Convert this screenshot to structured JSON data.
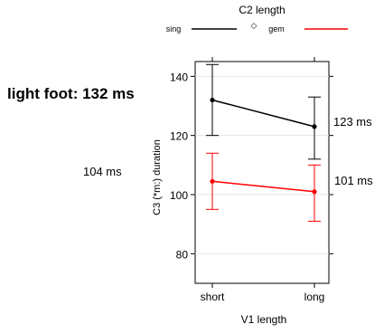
{
  "chart_data": {
    "type": "line",
    "legend": {
      "title": "C2 length",
      "placement": "top",
      "entries": [
        {
          "name": "sing",
          "color": "#000000",
          "marker": "line"
        },
        {
          "name": "gem",
          "color": "#ff0000",
          "marker": "line"
        }
      ],
      "extra_marker": "◇"
    },
    "categories": [
      "short",
      "long"
    ],
    "xlabel": "V1 length",
    "ylabel": "C3 (*m:) duration",
    "ylim": [
      70,
      145
    ],
    "yticks": [
      80,
      100,
      120,
      140
    ],
    "series": [
      {
        "name": "sing",
        "color": "#000000",
        "values": [
          132,
          123
        ],
        "error_low": [
          120,
          112
        ],
        "error_high": [
          144,
          133
        ]
      },
      {
        "name": "gem",
        "color": "#ff0000",
        "values": [
          104.5,
          101
        ],
        "error_low": [
          95,
          91
        ],
        "error_high": [
          114,
          110
        ]
      }
    ],
    "annotations": {
      "light_foot": "light foot: 132 ms",
      "sing_long": "123 ms",
      "gem_short": "104 ms",
      "gem_long": "101 ms"
    }
  }
}
